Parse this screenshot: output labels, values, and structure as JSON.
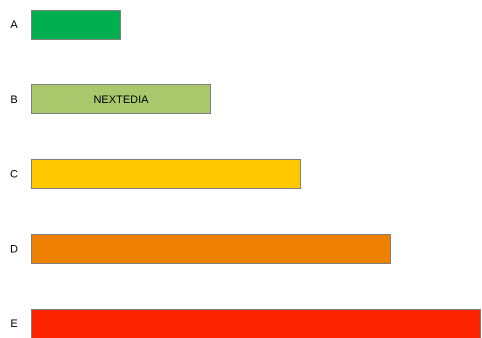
{
  "chart_data": {
    "type": "bar",
    "orientation": "horizontal",
    "categories": [
      "A",
      "B",
      "C",
      "D",
      "E"
    ],
    "values": [
      1,
      2,
      3,
      4,
      5
    ],
    "colors": [
      "#00B050",
      "#A9C86C",
      "#FFC800",
      "#EE8000",
      "#FF2400"
    ],
    "bar_labels": [
      "",
      "NEXTEDIA",
      "",
      "",
      ""
    ],
    "bar_border_color": "#7F7F7F",
    "title": "",
    "xlabel": "",
    "ylabel": "",
    "grid": false,
    "legend": "none"
  }
}
